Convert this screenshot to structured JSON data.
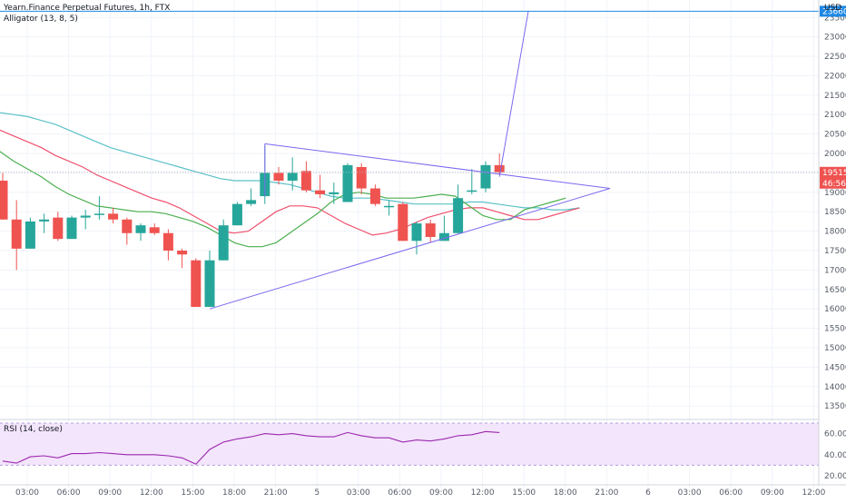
{
  "header": {
    "title": "Yearn.Finance Perpetual Futures, 1h, FTX",
    "indicator": "Alligator (13, 8, 5)",
    "currency": "USD",
    "rsi_label": "RSI (14, close)"
  },
  "colors": {
    "up": "#26a69a",
    "down": "#ef5350",
    "jaw": "#5bc0c8",
    "teeth": "#f0506e",
    "lips": "#4caf50",
    "trend": "#7b68ee",
    "hline": "#1e88e5",
    "rsi": "#9c27b0",
    "rsi_band": "#f3e5fb",
    "price_badge": "#ef5350"
  },
  "price_axis": {
    "ticks": [
      "23500",
      "23000",
      "22500",
      "22000",
      "21500",
      "21000",
      "20500",
      "20000",
      "19500",
      "19000",
      "18500",
      "18000",
      "17500",
      "17000",
      "16500",
      "16000",
      "15500",
      "15000",
      "14500",
      "14000",
      "13500"
    ],
    "ylim": [
      13200,
      23950
    ]
  },
  "badges": {
    "hline_price": "23660",
    "last_price": "19515",
    "countdown": "46:56"
  },
  "time_axis": {
    "labels": [
      "03:00",
      "06:00",
      "09:00",
      "12:00",
      "15:00",
      "18:00",
      "21:00",
      "5",
      "03:00",
      "06:00",
      "09:00",
      "12:00",
      "15:00",
      "18:00",
      "21:00",
      "6",
      "03:00",
      "06:00",
      "09:00",
      "12:00"
    ]
  },
  "rsi_axis": {
    "ticks": [
      "60.00",
      "40.00",
      "20.00"
    ]
  },
  "chart_data": [
    {
      "type": "candlestick",
      "title": "Yearn.Finance Perpetual Futures, 1h, FTX",
      "y_unit": "USD",
      "candles": [
        {
          "o": 19300,
          "h": 19500,
          "l": 18300,
          "c": 18300
        },
        {
          "o": 18300,
          "h": 18800,
          "l": 17000,
          "c": 17550
        },
        {
          "o": 17550,
          "h": 18350,
          "l": 17550,
          "c": 18250
        },
        {
          "o": 18250,
          "h": 18450,
          "l": 17950,
          "c": 18300
        },
        {
          "o": 18350,
          "h": 18500,
          "l": 17750,
          "c": 17800
        },
        {
          "o": 17800,
          "h": 18400,
          "l": 17800,
          "c": 18350
        },
        {
          "o": 18350,
          "h": 18550,
          "l": 18050,
          "c": 18400
        },
        {
          "o": 18450,
          "h": 18900,
          "l": 18300,
          "c": 18450
        },
        {
          "o": 18450,
          "h": 18600,
          "l": 18200,
          "c": 18300
        },
        {
          "o": 18300,
          "h": 18350,
          "l": 17650,
          "c": 17950
        },
        {
          "o": 17950,
          "h": 18200,
          "l": 17750,
          "c": 18150
        },
        {
          "o": 18100,
          "h": 18200,
          "l": 17900,
          "c": 17950
        },
        {
          "o": 17950,
          "h": 18050,
          "l": 17250,
          "c": 17500
        },
        {
          "o": 17500,
          "h": 17550,
          "l": 17050,
          "c": 17400
        },
        {
          "o": 17250,
          "h": 17300,
          "l": 16050,
          "c": 16050
        },
        {
          "o": 16050,
          "h": 17500,
          "l": 16050,
          "c": 17250
        },
        {
          "o": 17250,
          "h": 18300,
          "l": 17250,
          "c": 18150
        },
        {
          "o": 18150,
          "h": 18750,
          "l": 18150,
          "c": 18700
        },
        {
          "o": 18700,
          "h": 19100,
          "l": 18650,
          "c": 18800
        },
        {
          "o": 18900,
          "h": 20200,
          "l": 18700,
          "c": 19500
        },
        {
          "o": 19500,
          "h": 19650,
          "l": 19200,
          "c": 19300
        },
        {
          "o": 19300,
          "h": 19900,
          "l": 19050,
          "c": 19500
        },
        {
          "o": 19550,
          "h": 19800,
          "l": 19000,
          "c": 19050
        },
        {
          "o": 19050,
          "h": 19450,
          "l": 18850,
          "c": 18950
        },
        {
          "o": 18950,
          "h": 19250,
          "l": 18700,
          "c": 19000
        },
        {
          "o": 18750,
          "h": 19750,
          "l": 18750,
          "c": 19700
        },
        {
          "o": 19650,
          "h": 19750,
          "l": 18950,
          "c": 19100
        },
        {
          "o": 19100,
          "h": 19200,
          "l": 18650,
          "c": 18700
        },
        {
          "o": 18650,
          "h": 18800,
          "l": 18400,
          "c": 18650
        },
        {
          "o": 18700,
          "h": 18750,
          "l": 17750,
          "c": 17750
        },
        {
          "o": 17750,
          "h": 18250,
          "l": 17400,
          "c": 18200
        },
        {
          "o": 18200,
          "h": 18300,
          "l": 17700,
          "c": 17850
        },
        {
          "o": 17750,
          "h": 18400,
          "l": 17750,
          "c": 17950
        },
        {
          "o": 17950,
          "h": 19200,
          "l": 17950,
          "c": 18850
        },
        {
          "o": 19050,
          "h": 19600,
          "l": 18950,
          "c": 19050
        },
        {
          "o": 19100,
          "h": 19800,
          "l": 19000,
          "c": 19700
        },
        {
          "o": 19700,
          "h": 20000,
          "l": 19450,
          "c": 19515
        }
      ],
      "alligator": {
        "jaw": [
          21050,
          21000,
          20950,
          20850,
          20750,
          20600,
          20450,
          20300,
          20150,
          20050,
          19950,
          19850,
          19750,
          19650,
          19550,
          19450,
          19350,
          19300,
          19300,
          19300,
          19250,
          19200,
          19100,
          19000,
          18900,
          18850,
          18850,
          18850,
          18800,
          18750,
          18700,
          18700,
          18700,
          18700,
          18750,
          18750,
          18700,
          18650,
          18600,
          18600,
          18550,
          18550,
          18600
        ],
        "teeth": [
          20600,
          20450,
          20300,
          20150,
          19950,
          19800,
          19650,
          19450,
          19300,
          19150,
          19000,
          18850,
          18750,
          18600,
          18400,
          18200,
          18000,
          17950,
          18000,
          18250,
          18500,
          18650,
          18650,
          18600,
          18400,
          18200,
          18050,
          17900,
          17950,
          18050,
          18200,
          18350,
          18450,
          18550,
          18600,
          18600,
          18500,
          18400,
          18300,
          18300,
          18400,
          18500,
          18600
        ],
        "lips": [
          20050,
          19800,
          19600,
          19400,
          19150,
          18950,
          18800,
          18650,
          18600,
          18550,
          18500,
          18500,
          18450,
          18350,
          18250,
          18100,
          17900,
          17700,
          17600,
          17600,
          17700,
          17950,
          18200,
          18450,
          18750,
          18950,
          19000,
          18950,
          18850,
          18850,
          18850,
          18900,
          18950,
          18900,
          18650,
          18400,
          18300,
          18300,
          18550,
          18650,
          18750,
          18850
        ]
      },
      "trendlines": {
        "upper_start": 20250,
        "lower_start": 16000,
        "apex": 19100,
        "projection_target": 23660
      }
    },
    {
      "type": "line",
      "title": "RSI (14, close)",
      "ylim": [
        20,
        70
      ],
      "band": [
        30,
        70
      ],
      "values": [
        34,
        32,
        38,
        39,
        37,
        41,
        41,
        42,
        41,
        40,
        40,
        40,
        39,
        37,
        31,
        45,
        52,
        55,
        57,
        60,
        59,
        60,
        58,
        57,
        57,
        61,
        58,
        56,
        56,
        52,
        54,
        53,
        55,
        58,
        59,
        62,
        61
      ]
    }
  ]
}
